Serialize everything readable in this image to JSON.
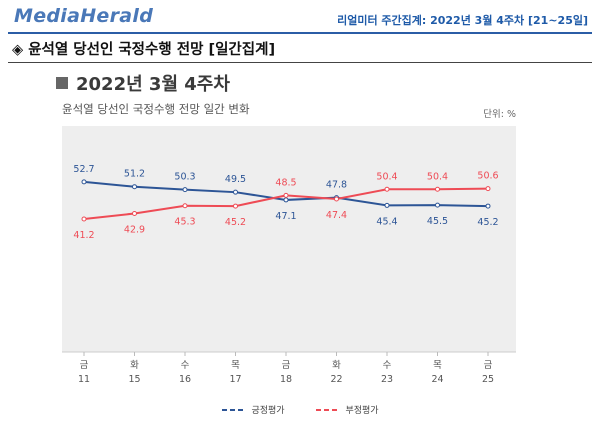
{
  "header": {
    "logo": "MediaHerald",
    "right_text": "리얼미터 주간집계: 2022년 3월 4주차 [21~25일]"
  },
  "section_title": "◈ 윤석열 당선인 국정수행 전망 [일간집계]",
  "week_label": "2022년 3월 4주차",
  "colors": {
    "positive": "#2d5596",
    "negative": "#ee4b55",
    "plot_bg": "#eeeeee"
  },
  "chart_data": {
    "type": "line",
    "title": "윤석열 당선인 국정수행 전망 일간 변화",
    "unit": "단위: %",
    "ylim": [
      0,
      70
    ],
    "grid": false,
    "legend_position": "bottom",
    "categories": [
      {
        "day": "금",
        "date": "11"
      },
      {
        "day": "화",
        "date": "15"
      },
      {
        "day": "수",
        "date": "16"
      },
      {
        "day": "목",
        "date": "17"
      },
      {
        "day": "금",
        "date": "18"
      },
      {
        "day": "화",
        "date": "22"
      },
      {
        "day": "수",
        "date": "23"
      },
      {
        "day": "목",
        "date": "24"
      },
      {
        "day": "금",
        "date": "25"
      }
    ],
    "series": [
      {
        "name": "긍정평가",
        "values": [
          52.7,
          51.2,
          50.3,
          49.5,
          47.1,
          47.8,
          45.4,
          45.5,
          45.2
        ]
      },
      {
        "name": "부정평가",
        "values": [
          41.2,
          42.9,
          45.3,
          45.2,
          48.5,
          47.4,
          50.4,
          50.4,
          50.6
        ]
      }
    ]
  }
}
